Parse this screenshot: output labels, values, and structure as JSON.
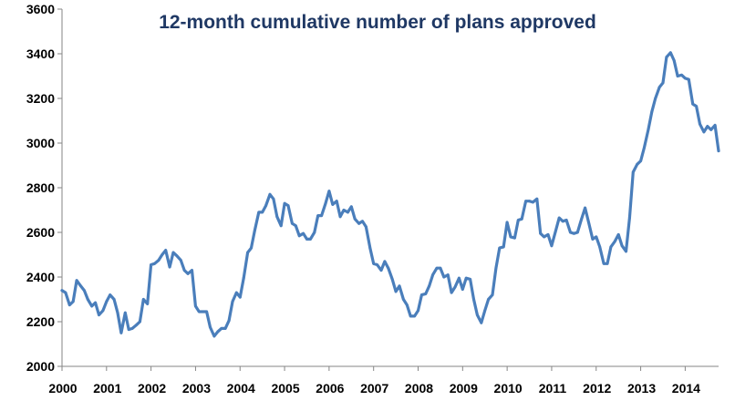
{
  "chart_data": {
    "type": "line",
    "title": "12-month cumulative number of plans approved",
    "xlabel": "",
    "ylabel": "",
    "ylim": [
      2000,
      3600
    ],
    "xlim": [
      2000,
      2014.75
    ],
    "y_ticks": [
      "2000",
      "2200",
      "2400",
      "2600",
      "2800",
      "3000",
      "3200",
      "3400",
      "3600"
    ],
    "x_ticks": [
      "2000",
      "2001",
      "2002",
      "2003",
      "2004",
      "2005",
      "2006",
      "2007",
      "2008",
      "2009",
      "2010",
      "2011",
      "2012",
      "2013",
      "2014"
    ],
    "grid": false,
    "legend": "none",
    "colors": {
      "line": "#4a7ebb",
      "title": "#1f3864"
    },
    "series": [
      {
        "x": [
          2000.0,
          2000.08,
          2000.17,
          2000.25,
          2000.33,
          2000.42,
          2000.5,
          2000.58,
          2000.67,
          2000.75,
          2000.83,
          2000.92,
          2001.0,
          2001.08,
          2001.17,
          2001.25,
          2001.33,
          2001.42,
          2001.5,
          2001.58,
          2001.67,
          2001.75,
          2001.83,
          2001.92,
          2002.0,
          2002.08,
          2002.17,
          2002.25,
          2002.33,
          2002.42,
          2002.5,
          2002.58,
          2002.67,
          2002.75,
          2002.83,
          2002.92,
          2003.0,
          2003.08,
          2003.17,
          2003.25,
          2003.33,
          2003.42,
          2003.5,
          2003.58,
          2003.67,
          2003.75,
          2003.83,
          2003.92,
          2004.0,
          2004.08,
          2004.17,
          2004.25,
          2004.33,
          2004.42,
          2004.5,
          2004.58,
          2004.67,
          2004.75,
          2004.83,
          2004.92,
          2005.0,
          2005.08,
          2005.17,
          2005.25,
          2005.33,
          2005.42,
          2005.5,
          2005.58,
          2005.67,
          2005.75,
          2005.83,
          2005.92,
          2006.0,
          2006.08,
          2006.17,
          2006.25,
          2006.33,
          2006.42,
          2006.5,
          2006.58,
          2006.67,
          2006.75,
          2006.83,
          2006.92,
          2007.0,
          2007.08,
          2007.17,
          2007.25,
          2007.33,
          2007.42,
          2007.5,
          2007.58,
          2007.67,
          2007.75,
          2007.83,
          2007.92,
          2008.0,
          2008.08,
          2008.17,
          2008.25,
          2008.33,
          2008.42,
          2008.5,
          2008.58,
          2008.67,
          2008.75,
          2008.83,
          2008.92,
          2009.0,
          2009.08,
          2009.17,
          2009.25,
          2009.33,
          2009.42,
          2009.5,
          2009.58,
          2009.67,
          2009.75,
          2009.83,
          2009.92,
          2010.0,
          2010.08,
          2010.17,
          2010.25,
          2010.33,
          2010.42,
          2010.5,
          2010.58,
          2010.67,
          2010.75,
          2010.83,
          2010.92,
          2011.0,
          2011.08,
          2011.17,
          2011.25,
          2011.33,
          2011.42,
          2011.5,
          2011.58,
          2011.67,
          2011.75,
          2011.83,
          2011.92,
          2012.0,
          2012.08,
          2012.17,
          2012.25,
          2012.33,
          2012.42,
          2012.5,
          2012.58,
          2012.67,
          2012.75,
          2012.83,
          2012.92,
          2013.0,
          2013.08,
          2013.17,
          2013.25,
          2013.33,
          2013.42,
          2013.5,
          2013.58,
          2013.67,
          2013.75,
          2013.83,
          2013.92,
          2014.0,
          2014.08,
          2014.17,
          2014.25,
          2014.33,
          2014.42,
          2014.5,
          2014.58,
          2014.67,
          2014.75
        ],
        "values": [
          2340,
          2330,
          2275,
          2290,
          2385,
          2360,
          2340,
          2300,
          2270,
          2285,
          2230,
          2250,
          2290,
          2320,
          2300,
          2240,
          2150,
          2240,
          2165,
          2170,
          2185,
          2200,
          2300,
          2280,
          2455,
          2460,
          2475,
          2500,
          2520,
          2445,
          2510,
          2495,
          2475,
          2430,
          2415,
          2430,
          2270,
          2245,
          2245,
          2245,
          2175,
          2135,
          2155,
          2170,
          2170,
          2205,
          2290,
          2330,
          2310,
          2395,
          2510,
          2530,
          2610,
          2690,
          2690,
          2720,
          2770,
          2750,
          2670,
          2630,
          2730,
          2720,
          2640,
          2630,
          2585,
          2595,
          2570,
          2570,
          2600,
          2675,
          2675,
          2730,
          2785,
          2725,
          2740,
          2670,
          2700,
          2690,
          2715,
          2660,
          2640,
          2650,
          2625,
          2530,
          2460,
          2455,
          2430,
          2470,
          2440,
          2390,
          2335,
          2360,
          2300,
          2275,
          2225,
          2225,
          2250,
          2320,
          2325,
          2360,
          2410,
          2440,
          2440,
          2400,
          2410,
          2330,
          2355,
          2395,
          2345,
          2395,
          2390,
          2300,
          2230,
          2195,
          2250,
          2300,
          2320,
          2440,
          2530,
          2535,
          2645,
          2580,
          2575,
          2655,
          2660,
          2740,
          2740,
          2735,
          2750,
          2595,
          2580,
          2590,
          2540,
          2600,
          2665,
          2650,
          2655,
          2600,
          2595,
          2600,
          2660,
          2710,
          2645,
          2570,
          2580,
          2535,
          2460,
          2460,
          2535,
          2560,
          2590,
          2540,
          2515,
          2665,
          2870,
          2905,
          2920,
          2980,
          3060,
          3140,
          3200,
          3250,
          3270,
          3385,
          3405,
          3370,
          3300,
          3305,
          3290,
          3285,
          3175,
          3165,
          3085,
          3050,
          3075,
          3060,
          3080,
          2965
        ]
      }
    ]
  }
}
